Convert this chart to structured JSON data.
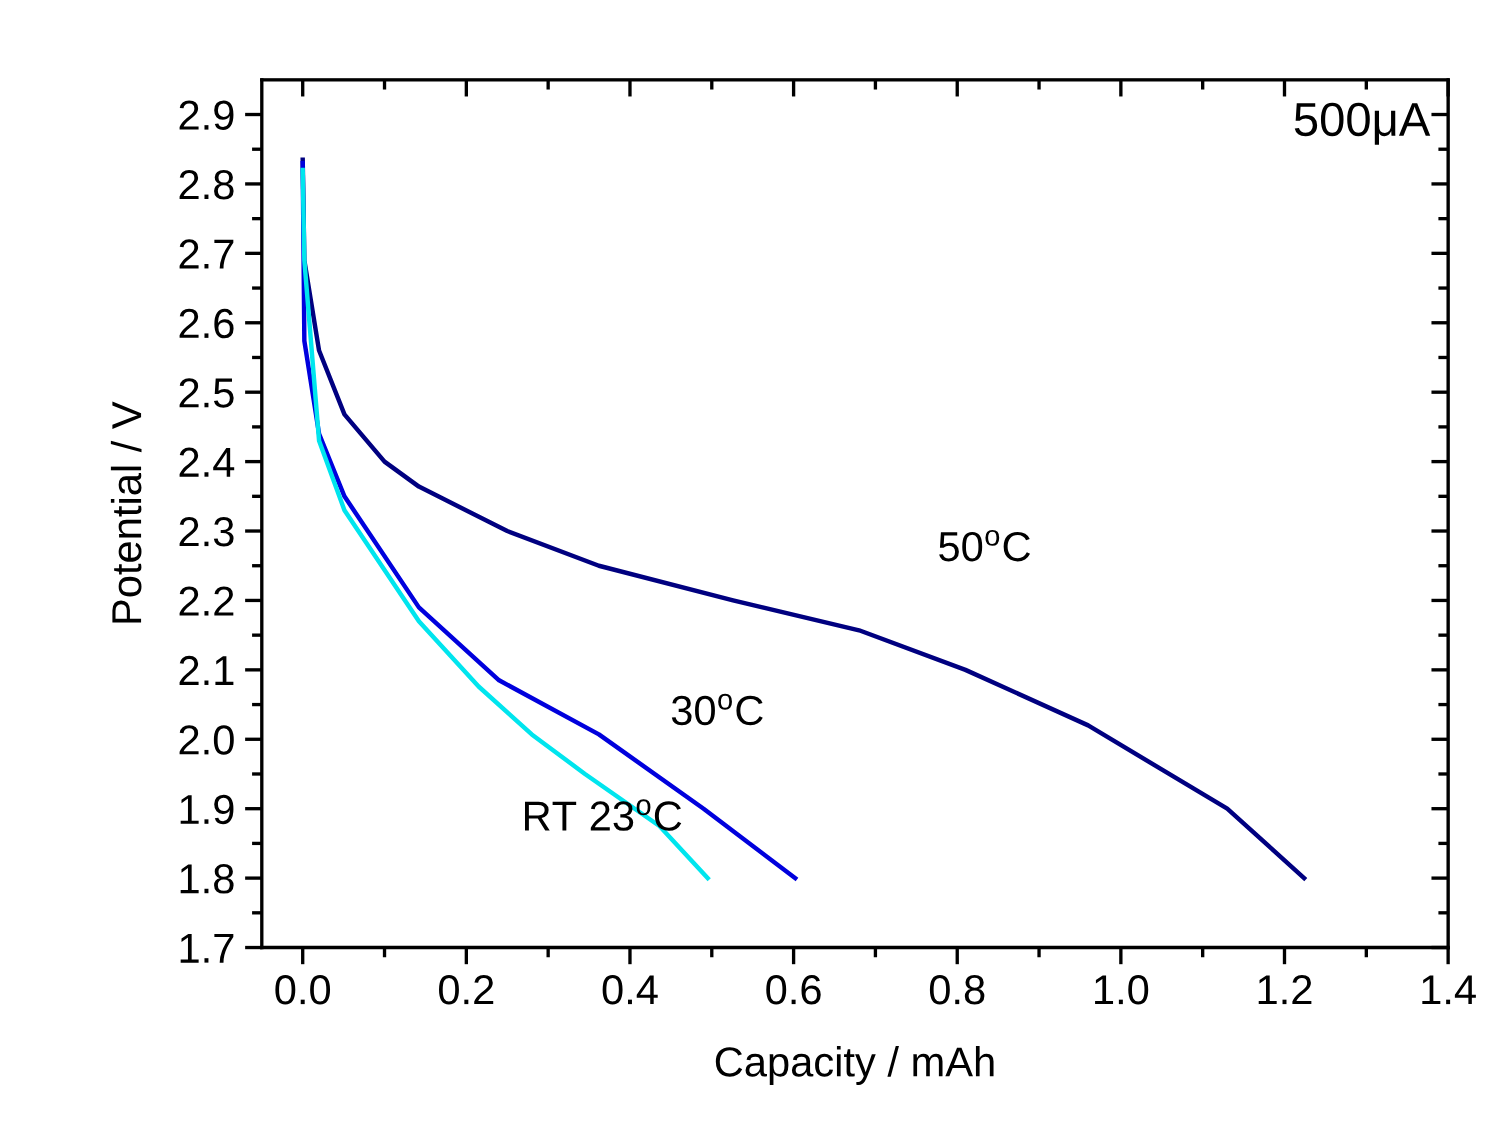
{
  "chart_data": {
    "type": "line",
    "xlabel": "Capacity / mAh",
    "ylabel": "Potential / V",
    "annotations": [
      "500μA"
    ],
    "xlim": [
      -0.05,
      1.4
    ],
    "xticks": [
      {
        "value": 0,
        "label": "0.0"
      },
      0.2,
      0.4,
      0.6,
      0.8,
      {
        "value": 1,
        "label": "1.0"
      },
      1.2,
      1.4
    ],
    "ylim": [
      1.7,
      2.95
    ],
    "yticks": [
      1.7,
      1.8,
      1.9,
      {
        "value": 2,
        "label": "2.0"
      },
      2.1,
      2.2,
      2.3,
      2.4,
      2.5,
      2.6,
      2.7,
      2.8,
      2.9
    ],
    "grid": false,
    "legend": false,
    "line_style": "solid",
    "series": [
      {
        "name": "50$^{o}$C",
        "color": "#000080",
        "x": [
          0,
          0.002,
          0.02,
          0.051,
          0.1,
          0.142,
          0.25,
          0.362,
          0.526,
          0.68,
          0.81,
          0.96,
          1.13,
          1.224
        ],
        "values": [
          2.835,
          2.69,
          2.56,
          2.468,
          2.4,
          2.364,
          2.3,
          2.25,
          2.2,
          2.157,
          2.1,
          2.02,
          1.9,
          1.8
        ]
      },
      {
        "name": "30$^{o}$C",
        "color": "#0000dd",
        "x": [
          0,
          0.002,
          0.02,
          0.051,
          0.142,
          0.24,
          0.362,
          0.49,
          0.602
        ],
        "values": [
          2.83,
          2.574,
          2.44,
          2.35,
          2.19,
          2.085,
          2.007,
          1.9,
          1.8
        ]
      },
      {
        "name": "RT 23$^{o}$C",
        "color": "#00e5ee",
        "x": [
          0,
          0.002,
          0.02,
          0.051,
          0.142,
          0.215,
          0.28,
          0.345,
          0.436,
          0.495
        ],
        "values": [
          2.82,
          2.69,
          2.43,
          2.33,
          2.17,
          2.076,
          2.007,
          1.95,
          1.875,
          1.8
        ]
      }
    ]
  }
}
